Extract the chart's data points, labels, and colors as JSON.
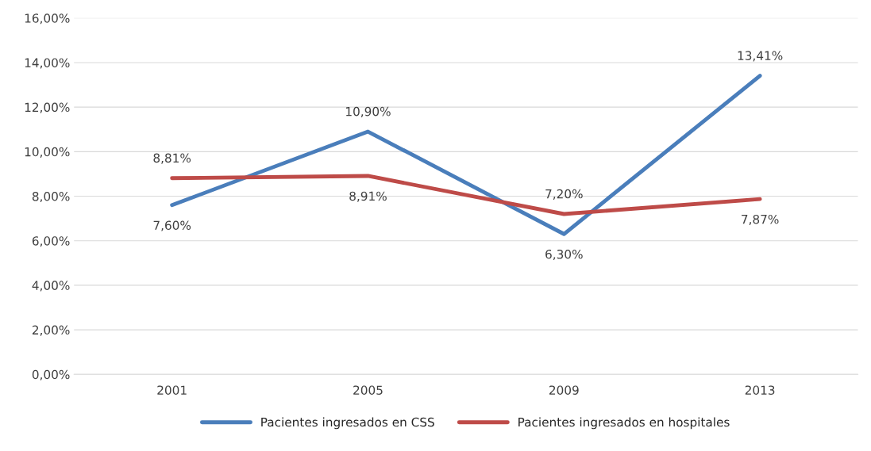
{
  "chart_data": {
    "type": "line",
    "categories": [
      "2001",
      "2005",
      "2009",
      "2013"
    ],
    "series": [
      {
        "name": "Pacientes ingresados en CSS",
        "color": "#4a7ebb",
        "values": [
          7.6,
          10.9,
          6.3,
          13.41
        ],
        "value_labels": [
          "7,60%",
          "10,90%",
          "6,30%",
          "13,41%"
        ]
      },
      {
        "name": "Pacientes ingresados en hospitales",
        "color": "#be4b48",
        "values": [
          8.81,
          8.91,
          7.2,
          7.87
        ],
        "value_labels": [
          "8,81%",
          "8,91%",
          "7,20%",
          "7,87%"
        ]
      }
    ],
    "ylim": [
      0,
      16
    ],
    "yticks": [
      {
        "value": 0,
        "label": "0,00%"
      },
      {
        "value": 2,
        "label": "2,00%"
      },
      {
        "value": 4,
        "label": "4,00%"
      },
      {
        "value": 6,
        "label": "6,00%"
      },
      {
        "value": 8,
        "label": "8,00%"
      },
      {
        "value": 10,
        "label": "10,00%"
      },
      {
        "value": 12,
        "label": "12,00%"
      },
      {
        "value": 14,
        "label": "14,00%"
      },
      {
        "value": 16,
        "label": "16,00%"
      }
    ],
    "grid": "y",
    "legend": "bottom",
    "marker": "none",
    "line_style": "solid"
  }
}
